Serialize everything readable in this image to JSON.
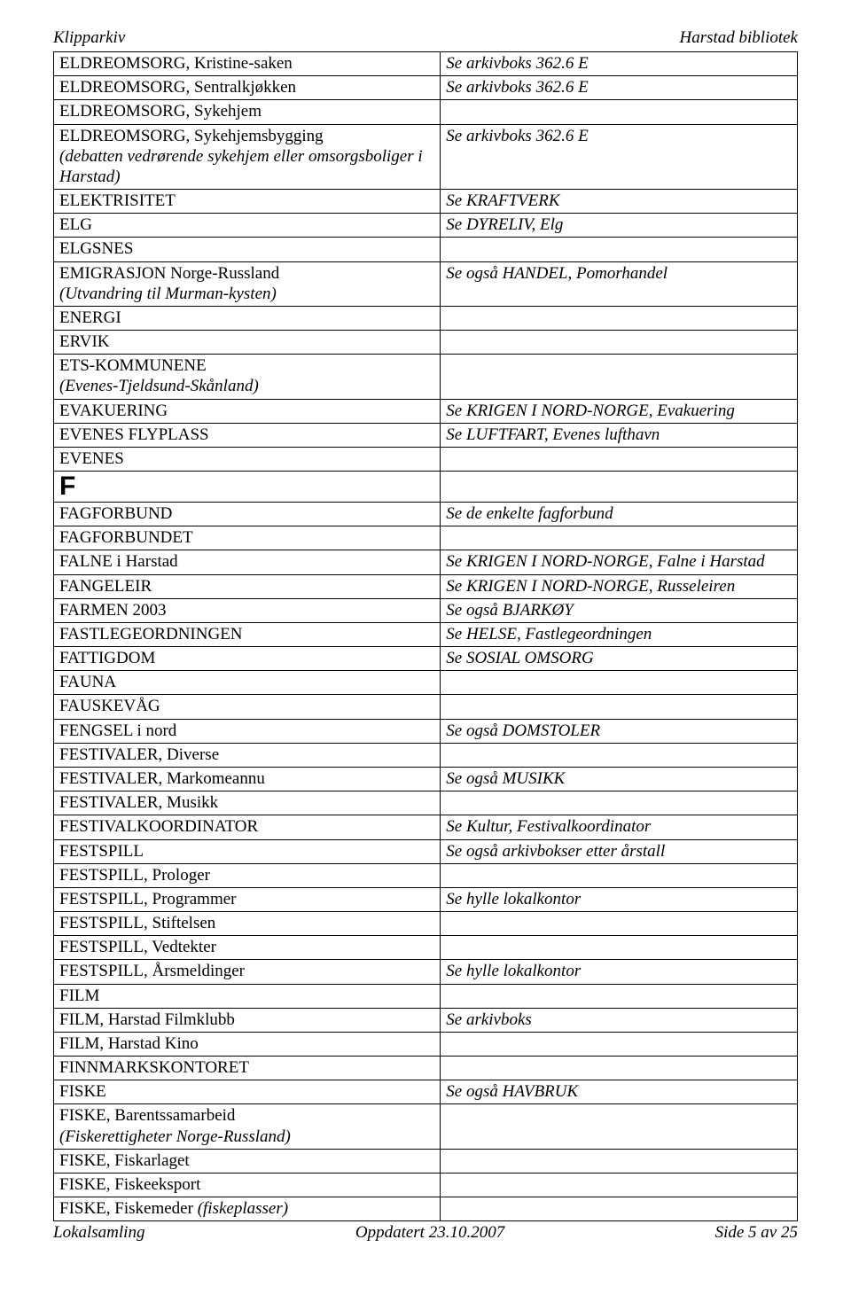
{
  "header": {
    "left": "Klipparkiv",
    "right": "Harstad bibliotek"
  },
  "footer": {
    "left": "Lokalsamling",
    "center": "Oppdatert 23.10.2007",
    "right": "Side 5 av 25"
  },
  "sectionLetter": "F",
  "rows": [
    {
      "l": "ELDREOMSORG, Kristine-saken",
      "r": "Se arkivboks 362.6 E",
      "ri": true
    },
    {
      "l": "ELDREOMSORG, Sentralkjøkken",
      "r": "Se arkivboks 362.6 E",
      "ri": true
    },
    {
      "l": "ELDREOMSORG, Sykehjem",
      "r": ""
    },
    {
      "l": "ELDREOMSORG, Sykehjemsbygging",
      "l2": "(debatten vedrørende sykehjem eller omsorgsboliger i Harstad)",
      "l2i": true,
      "r": "Se arkivboks 362.6 E",
      "ri": true
    },
    {
      "l": "ELEKTRISITET",
      "r": "Se KRAFTVERK",
      "ri": true
    },
    {
      "l": "ELG",
      "r": "Se DYRELIV, Elg",
      "ri": true
    },
    {
      "l": "ELGSNES",
      "r": ""
    },
    {
      "l": "EMIGRASJON Norge-Russland",
      "l2": "(Utvandring til Murman-kysten)",
      "l2i": true,
      "r": "Se også HANDEL, Pomorhandel",
      "ri": true
    },
    {
      "l": "ENERGI",
      "r": ""
    },
    {
      "l": "ERVIK",
      "r": ""
    },
    {
      "l": "ETS-KOMMUNENE",
      "l2": "(Evenes-Tjeldsund-Skånland)",
      "l2i": true,
      "r": ""
    },
    {
      "l": "EVAKUERING",
      "r": "Se KRIGEN I NORD-NORGE, Evakuering",
      "ri": true
    },
    {
      "l": "EVENES FLYPLASS",
      "r": "Se LUFTFART, Evenes lufthavn",
      "ri": true
    },
    {
      "l": "EVENES",
      "r": ""
    }
  ],
  "rows2": [
    {
      "l": "FAGFORBUND",
      "r": "Se de enkelte fagforbund",
      "ri": true
    },
    {
      "l": "FAGFORBUNDET",
      "r": ""
    },
    {
      "l": "FALNE i Harstad",
      "r": "Se KRIGEN I NORD-NORGE, Falne i Harstad",
      "ri": true
    },
    {
      "l": "FANGELEIR",
      "r": "Se KRIGEN I NORD-NORGE, Russeleiren",
      "ri": true
    },
    {
      "l": "FARMEN 2003",
      "r": "Se også BJARKØY",
      "ri": true
    },
    {
      "l": "FASTLEGEORDNINGEN",
      "r": "Se HELSE, Fastlegeordningen",
      "ri": true
    },
    {
      "l": "FATTIGDOM",
      "r": "Se SOSIAL OMSORG",
      "ri": true
    },
    {
      "l": "FAUNA",
      "r": ""
    },
    {
      "l": "FAUSKEVÅG",
      "r": ""
    },
    {
      "l": "FENGSEL i nord",
      "r": "Se også DOMSTOLER",
      "ri": true
    },
    {
      "l": "FESTIVALER, Diverse",
      "r": ""
    },
    {
      "l": "FESTIVALER, Markomeannu",
      "r": "Se også MUSIKK",
      "ri": true
    },
    {
      "l": "FESTIVALER, Musikk",
      "r": ""
    },
    {
      "l": "FESTIVALKOORDINATOR",
      "r": "Se Kultur, Festivalkoordinator",
      "ri": true
    },
    {
      "l": "FESTSPILL",
      "r": "Se også arkivbokser etter årstall",
      "ri": true
    },
    {
      "l": "FESTSPILL, Prologer",
      "r": ""
    },
    {
      "l": "FESTSPILL, Programmer",
      "r": "Se hylle lokalkontor",
      "ri": true
    },
    {
      "l": "FESTSPILL, Stiftelsen",
      "r": ""
    },
    {
      "l": "FESTSPILL, Vedtekter",
      "r": ""
    },
    {
      "l": "FESTSPILL, Årsmeldinger",
      "r": "Se hylle lokalkontor",
      "ri": true
    },
    {
      "l": "FILM",
      "r": ""
    },
    {
      "l": "FILM, Harstad Filmklubb",
      "r": "Se arkivboks",
      "ri": true
    },
    {
      "l": "FILM, Harstad Kino",
      "r": ""
    },
    {
      "l": "FINNMARKSKONTORET",
      "r": ""
    },
    {
      "l": "FISKE",
      "r": "Se også HAVBRUK",
      "ri": true
    },
    {
      "l": "FISKE, Barentssamarbeid",
      "l2": "(Fiskerettigheter Norge-Russland)",
      "l2i": true,
      "r": ""
    },
    {
      "l": "FISKE, Fiskarlaget",
      "r": ""
    },
    {
      "l": "FISKE, Fiskeeksport",
      "r": ""
    },
    {
      "l5": "FISKE, Fiskemeder ",
      "l5b": "(fiskeplasser)",
      "r": ""
    }
  ]
}
